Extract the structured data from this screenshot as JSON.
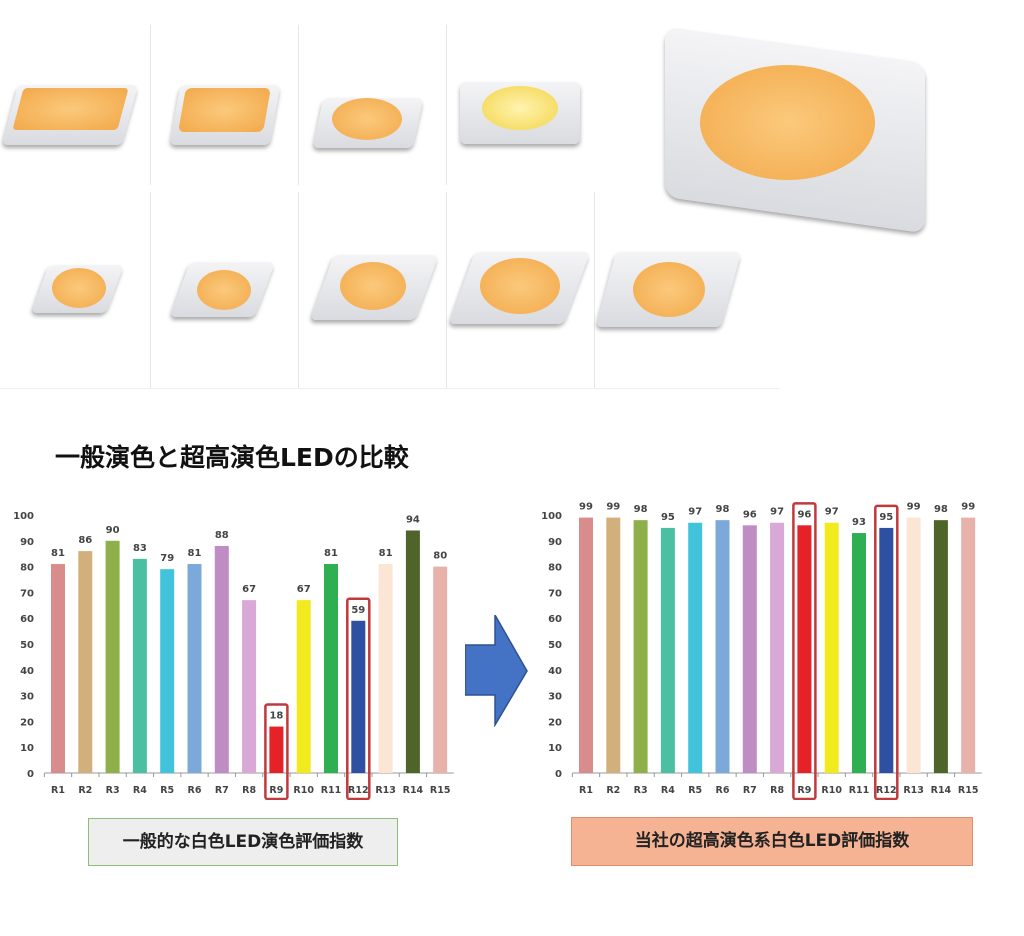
{
  "title": "一般演色と超高演色LEDの比較",
  "chart_data": [
    {
      "type": "bar",
      "title": "一般的な白色LED演色評価指数",
      "categories": [
        "R1",
        "R2",
        "R3",
        "R4",
        "R5",
        "R6",
        "R7",
        "R8",
        "R9",
        "R10",
        "R11",
        "R12",
        "R13",
        "R14",
        "R15"
      ],
      "values": [
        81,
        86,
        90,
        83,
        79,
        81,
        88,
        67,
        18,
        67,
        81,
        59,
        81,
        94,
        80
      ],
      "highlighted": [
        "R9",
        "R12"
      ],
      "ylim": [
        0,
        100
      ],
      "yticks": [
        0,
        10,
        20,
        30,
        40,
        50,
        60,
        70,
        80,
        90,
        100
      ],
      "xlabel": "",
      "ylabel": ""
    },
    {
      "type": "bar",
      "title": "当社の超高演色系白色LED評価指数",
      "categories": [
        "R1",
        "R2",
        "R3",
        "R4",
        "R5",
        "R6",
        "R7",
        "R8",
        "R9",
        "R10",
        "R11",
        "R12",
        "R13",
        "R14",
        "R15"
      ],
      "values": [
        99,
        99,
        98,
        95,
        97,
        98,
        96,
        97,
        96,
        97,
        93,
        95,
        99,
        98,
        99
      ],
      "highlighted": [
        "R9",
        "R12"
      ],
      "ylim": [
        0,
        100
      ],
      "yticks": [
        0,
        10,
        20,
        30,
        40,
        50,
        60,
        70,
        80,
        90,
        100
      ],
      "xlabel": "",
      "ylabel": ""
    }
  ],
  "colors": [
    "#d98c8c",
    "#d2b07c",
    "#8db04a",
    "#4bbfa2",
    "#41c3dc",
    "#7ba9d9",
    "#c08cc4",
    "#d9a8d6",
    "#e42228",
    "#f2ea1e",
    "#2eaf52",
    "#2f4fa0",
    "#fbe6d6",
    "#4e6428",
    "#e8b1aa"
  ],
  "highlight_color": "#c0393b",
  "arrow_color": "#4472c4"
}
